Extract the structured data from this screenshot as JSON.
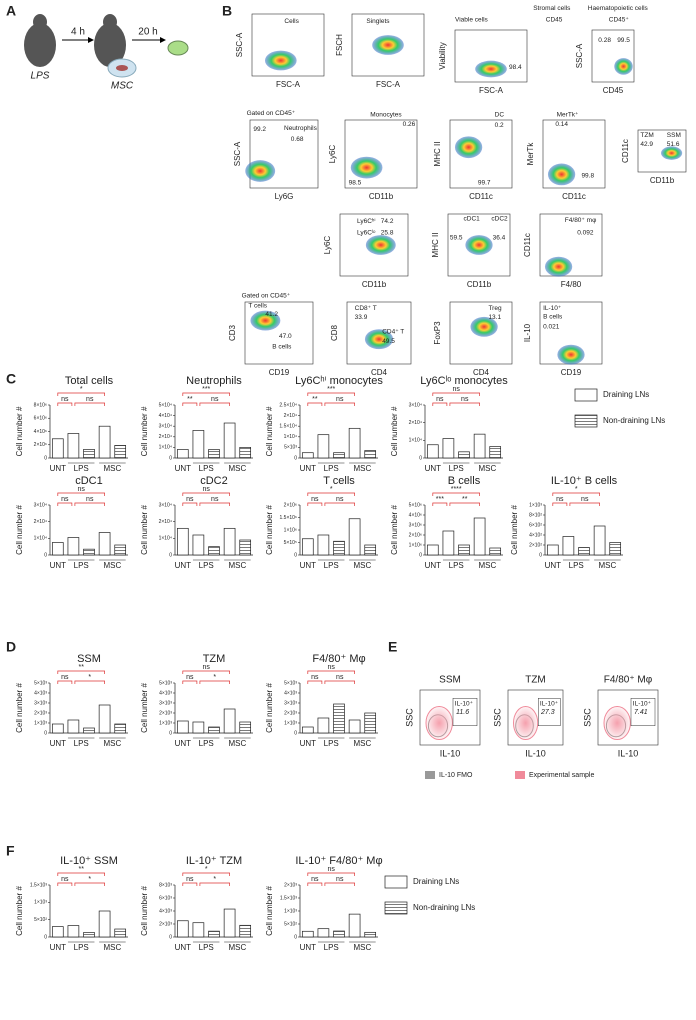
{
  "panel_labels": [
    "A",
    "B",
    "C",
    "D",
    "E",
    "F"
  ],
  "panel_a": {
    "steps": [
      "4 h",
      "20 h"
    ],
    "treatments": [
      "LPS",
      "MSC"
    ]
  },
  "flow": [
    {
      "y": "SSC-A",
      "x": "FSC-A",
      "gates": [
        "Cells"
      ]
    },
    {
      "y": "FSCH",
      "x": "FSC-A",
      "gates": [
        "Singlets"
      ]
    },
    {
      "y": "Viability",
      "x": "FSC-A",
      "gates": [
        "Viable cells",
        "98.4"
      ]
    },
    {
      "y": "SSC-A",
      "x": "CD45",
      "gates": [
        "Stromal cells",
        "Haematopoietic cells",
        "CD45",
        "CD45⁺",
        "0.28",
        "99.5"
      ]
    },
    {
      "y": "SSC-A",
      "x": "Ly6G",
      "gates": [
        "Gated on CD45⁺",
        "99.2",
        "Neutrophils",
        "0.68"
      ]
    },
    {
      "y": "Ly6C",
      "x": "CD11b",
      "gates": [
        "Monocytes",
        "0.26",
        "98.5"
      ]
    },
    {
      "y": "MHC II",
      "x": "CD11c",
      "gates": [
        "DC",
        "0.2",
        "99.7"
      ]
    },
    {
      "y": "MerTk",
      "x": "CD11c",
      "gates": [
        "MerTk⁺",
        "0.14",
        "99.8"
      ]
    },
    {
      "y": "CD11c",
      "x": "CD11b",
      "gates": [
        "TZM",
        "SSM",
        "42.9",
        "51.6"
      ]
    },
    {
      "y": "Ly6C",
      "x": "CD11b",
      "gates": [
        "Ly6Cʰⁱ",
        "74.2",
        "Ly6Cˡᵒ",
        "25.8"
      ]
    },
    {
      "y": "MHC II",
      "x": "CD11b",
      "gates": [
        "cDC1",
        "cDC2",
        "59.5",
        "36.4"
      ]
    },
    {
      "y": "CD11c",
      "x": "F4/80",
      "gates": [
        "F4/80⁺ mφ",
        "0.092"
      ]
    },
    {
      "y": "CD3",
      "x": "CD19",
      "gates": [
        "Gated on CD45⁺",
        "T cells",
        "41.2",
        "47.0",
        "B cells"
      ]
    },
    {
      "y": "CD8",
      "x": "CD4",
      "gates": [
        "CD8⁺ T",
        "33.9",
        "CD4⁺ T",
        "49.5"
      ]
    },
    {
      "y": "FoxP3",
      "x": "CD4",
      "gates": [
        "Treg",
        "13.1"
      ]
    },
    {
      "y": "IL-10",
      "x": "CD19",
      "gates": [
        "IL-10⁺",
        "B cells",
        "0.021"
      ]
    }
  ],
  "panel_e": {
    "plots": [
      {
        "title": "SSM",
        "y": "SSC",
        "x": "IL-10",
        "gates": [
          "IL-10⁺",
          "11.6"
        ]
      },
      {
        "title": "TZM",
        "y": "SSC",
        "x": "IL-10",
        "gates": [
          "IL-10⁺",
          "27.3"
        ]
      },
      {
        "title": "F4/80⁺ Mφ",
        "y": "SSC",
        "x": "IL-10",
        "gates": [
          "IL-10⁺",
          "7.41"
        ]
      }
    ],
    "legend": [
      {
        "name": "IL-10 FMO",
        "color": "#999999"
      },
      {
        "name": "Experimental sample",
        "color": "#f08a9a"
      }
    ]
  },
  "chart_data": [
    {
      "type": "bar",
      "title": "Total cells",
      "ylabel": "Cell number #",
      "categories": [
        "UNT",
        "LPS",
        "MSC"
      ],
      "series": [
        {
          "name": "Draining LNs",
          "color": "#ffffff",
          "hatch": false,
          "values": [
            2900000,
            3700000,
            4800000
          ]
        },
        {
          "name": "Non-draining LNs",
          "color": "#ffffff",
          "hatch": true,
          "values": [
            null,
            1300000,
            1900000
          ]
        }
      ],
      "ylim": [
        0,
        8000000
      ],
      "yticks": [
        0,
        {
          "value": 2000000,
          "label": "2×10⁶"
        },
        {
          "value": 4000000,
          "label": "4×10⁶"
        },
        {
          "value": 6000000,
          "label": "6×10⁶"
        },
        {
          "value": 8000000,
          "label": "8×10⁶"
        }
      ],
      "annotations": [
        "*",
        "ns",
        "ns"
      ]
    },
    {
      "type": "bar",
      "title": "Neutrophils",
      "ylabel": "Cell number #",
      "categories": [
        "UNT",
        "LPS",
        "MSC"
      ],
      "series": [
        {
          "name": "Draining LNs",
          "color": "#ffffff",
          "hatch": false,
          "values": [
            8000,
            26000,
            33000
          ]
        },
        {
          "name": "Non-draining LNs",
          "color": "#ffffff",
          "hatch": true,
          "values": [
            null,
            8000,
            10000
          ]
        }
      ],
      "ylim": [
        0,
        50000
      ],
      "yticks": [
        0,
        {
          "value": 10000,
          "label": "1×10⁴"
        },
        {
          "value": 20000,
          "label": "2×10⁴"
        },
        {
          "value": 30000,
          "label": "3×10⁴"
        },
        {
          "value": 40000,
          "label": "4×10⁴"
        },
        {
          "value": 50000,
          "label": "5×10⁴"
        }
      ],
      "annotations": [
        "***",
        "**",
        "ns"
      ]
    },
    {
      "type": "bar",
      "title": "Ly6Cʰⁱ monocytes",
      "ylabel": "Cell number #",
      "categories": [
        "UNT",
        "LPS",
        "MSC"
      ],
      "series": [
        {
          "name": "Draining LNs",
          "color": "#ffffff",
          "hatch": false,
          "values": [
            2500,
            11000,
            14000
          ]
        },
        {
          "name": "Non-draining LNs",
          "color": "#ffffff",
          "hatch": true,
          "values": [
            null,
            2500,
            3500
          ]
        }
      ],
      "ylim": [
        0,
        25000
      ],
      "yticks": [
        0,
        {
          "value": 5000,
          "label": "5×10³"
        },
        {
          "value": 10000,
          "label": "1×10⁴"
        },
        {
          "value": 15000,
          "label": "1.5×10⁴"
        },
        {
          "value": 20000,
          "label": "2×10⁴"
        },
        {
          "value": 25000,
          "label": "2.5×10⁴"
        }
      ],
      "annotations": [
        "***",
        "**",
        "ns"
      ]
    },
    {
      "type": "bar",
      "title": "Ly6Cˡᵒ monocytes",
      "ylabel": "Cell number #",
      "categories": [
        "UNT",
        "LPS",
        "MSC"
      ],
      "series": [
        {
          "name": "Draining LNs",
          "color": "#ffffff",
          "hatch": false,
          "values": [
            7500,
            11000,
            13500
          ]
        },
        {
          "name": "Non-draining LNs",
          "color": "#ffffff",
          "hatch": true,
          "values": [
            null,
            3500,
            6500
          ]
        }
      ],
      "ylim": [
        0,
        30000
      ],
      "yticks": [
        0,
        {
          "value": 10000,
          "label": "1×10⁴"
        },
        {
          "value": 20000,
          "label": "2×10⁴"
        },
        {
          "value": 30000,
          "label": "3×10⁴"
        }
      ],
      "annotations": [
        "ns",
        "ns",
        "ns"
      ]
    },
    {
      "type": "bar",
      "title": "cDC1",
      "ylabel": "Cell number #",
      "categories": [
        "UNT",
        "LPS",
        "MSC"
      ],
      "series": [
        {
          "name": "Draining LNs",
          "color": "#ffffff",
          "hatch": false,
          "values": [
            7500,
            10500,
            13500
          ]
        },
        {
          "name": "Non-draining LNs",
          "color": "#ffffff",
          "hatch": true,
          "values": [
            null,
            3500,
            6000
          ]
        }
      ],
      "ylim": [
        0,
        30000
      ],
      "yticks": [
        0,
        {
          "value": 10000,
          "label": "1×10⁴"
        },
        {
          "value": 20000,
          "label": "2×10⁴"
        },
        {
          "value": 30000,
          "label": "3×10⁴"
        }
      ],
      "annotations": [
        "ns",
        "ns",
        "ns"
      ]
    },
    {
      "type": "bar",
      "title": "cDC2",
      "ylabel": "Cell number #",
      "categories": [
        "UNT",
        "LPS",
        "MSC"
      ],
      "series": [
        {
          "name": "Draining LNs",
          "color": "#ffffff",
          "hatch": false,
          "values": [
            16000,
            12000,
            16000
          ]
        },
        {
          "name": "Non-draining LNs",
          "color": "#ffffff",
          "hatch": true,
          "values": [
            null,
            5000,
            9000
          ]
        }
      ],
      "ylim": [
        0,
        30000
      ],
      "yticks": [
        0,
        {
          "value": 10000,
          "label": "1×10⁴"
        },
        {
          "value": 20000,
          "label": "2×10⁴"
        },
        {
          "value": 30000,
          "label": "3×10⁴"
        }
      ],
      "annotations": [
        "ns",
        "ns",
        "ns"
      ]
    },
    {
      "type": "bar",
      "title": "T cells",
      "ylabel": "Cell number #",
      "categories": [
        "UNT",
        "LPS",
        "MSC"
      ],
      "series": [
        {
          "name": "Draining LNs",
          "color": "#ffffff",
          "hatch": false,
          "values": [
            650000,
            800000,
            1450000
          ]
        },
        {
          "name": "Non-draining LNs",
          "color": "#ffffff",
          "hatch": true,
          "values": [
            null,
            550000,
            400000
          ]
        }
      ],
      "ylim": [
        0,
        2000000
      ],
      "yticks": [
        0,
        {
          "value": 500000,
          "label": "5×10⁵"
        },
        {
          "value": 1000000,
          "label": "1×10⁶"
        },
        {
          "value": 1500000,
          "label": "1.5×10⁶"
        },
        {
          "value": 2000000,
          "label": "2×10⁶"
        }
      ],
      "annotations": [
        "*",
        "ns",
        "ns"
      ]
    },
    {
      "type": "bar",
      "title": "B cells",
      "ylabel": "Cell number #",
      "categories": [
        "UNT",
        "LPS",
        "MSC"
      ],
      "series": [
        {
          "name": "Draining LNs",
          "color": "#ffffff",
          "hatch": false,
          "values": [
            1000000,
            2400000,
            3700000
          ]
        },
        {
          "name": "Non-draining LNs",
          "color": "#ffffff",
          "hatch": true,
          "values": [
            null,
            1000000,
            700000
          ]
        }
      ],
      "ylim": [
        0,
        5000000
      ],
      "yticks": [
        0,
        {
          "value": 1000000,
          "label": "1×10⁶"
        },
        {
          "value": 2000000,
          "label": "2×10⁶"
        },
        {
          "value": 3000000,
          "label": "3×10⁶"
        },
        {
          "value": 4000000,
          "label": "4×10⁶"
        },
        {
          "value": 5000000,
          "label": "5×10⁶"
        }
      ],
      "annotations": [
        "****",
        "***",
        "**"
      ]
    },
    {
      "type": "bar",
      "title": "IL-10⁺ B cells",
      "ylabel": "Cell number #",
      "categories": [
        "UNT",
        "LPS",
        "MSC"
      ],
      "series": [
        {
          "name": "Draining LNs",
          "color": "#ffffff",
          "hatch": false,
          "values": [
            200,
            370,
            580
          ]
        },
        {
          "name": "Non-draining LNs",
          "color": "#ffffff",
          "hatch": true,
          "values": [
            null,
            150,
            250
          ]
        }
      ],
      "ylim": [
        0,
        1000
      ],
      "yticks": [
        0,
        {
          "value": 200,
          "label": "2×10²"
        },
        {
          "value": 400,
          "label": "4×10²"
        },
        {
          "value": 600,
          "label": "6×10²"
        },
        {
          "value": 800,
          "label": "8×10²"
        },
        {
          "value": 1000,
          "label": "1×10³"
        }
      ],
      "annotations": [
        "*",
        "ns",
        "ns"
      ]
    },
    {
      "type": "bar",
      "title": "SSM",
      "ylabel": "Cell number #",
      "categories": [
        "UNT",
        "LPS",
        "MSC"
      ],
      "series": [
        {
          "name": "Draining LNs",
          "color": "#ffffff",
          "hatch": false,
          "values": [
            900,
            1300,
            2800
          ]
        },
        {
          "name": "Non-draining LNs",
          "color": "#ffffff",
          "hatch": true,
          "values": [
            null,
            500,
            900
          ]
        }
      ],
      "ylim": [
        0,
        5000
      ],
      "yticks": [
        0,
        {
          "value": 1000,
          "label": "1×10³"
        },
        {
          "value": 2000,
          "label": "2×10³"
        },
        {
          "value": 3000,
          "label": "3×10³"
        },
        {
          "value": 4000,
          "label": "4×10³"
        },
        {
          "value": 5000,
          "label": "5×10³"
        }
      ],
      "annotations": [
        "**",
        "ns",
        "*"
      ]
    },
    {
      "type": "bar",
      "title": "TZM",
      "ylabel": "Cell number #",
      "categories": [
        "UNT",
        "LPS",
        "MSC"
      ],
      "series": [
        {
          "name": "Draining LNs",
          "color": "#ffffff",
          "hatch": false,
          "values": [
            1200,
            1100,
            2400
          ]
        },
        {
          "name": "Non-draining LNs",
          "color": "#ffffff",
          "hatch": true,
          "values": [
            null,
            600,
            1100
          ]
        }
      ],
      "ylim": [
        0,
        5000
      ],
      "yticks": [
        0,
        {
          "value": 1000,
          "label": "1×10³"
        },
        {
          "value": 2000,
          "label": "2×10³"
        },
        {
          "value": 3000,
          "label": "3×10³"
        },
        {
          "value": 4000,
          "label": "4×10³"
        },
        {
          "value": 5000,
          "label": "5×10³"
        }
      ],
      "annotations": [
        "ns",
        "ns",
        "*"
      ]
    },
    {
      "type": "bar",
      "title": "F4/80⁺ Mφ",
      "ylabel": "Cell number #",
      "categories": [
        "UNT",
        "LPS",
        "MSC"
      ],
      "series": [
        {
          "name": "Draining LNs",
          "color": "#ffffff",
          "hatch": false,
          "values": [
            600,
            1500,
            1300
          ]
        },
        {
          "name": "Non-draining LNs",
          "color": "#ffffff",
          "hatch": true,
          "values": [
            null,
            2900,
            2000
          ]
        }
      ],
      "ylim": [
        0,
        5000
      ],
      "yticks": [
        0,
        {
          "value": 1000,
          "label": "1×10³"
        },
        {
          "value": 2000,
          "label": "2×10³"
        },
        {
          "value": 3000,
          "label": "3×10³"
        },
        {
          "value": 4000,
          "label": "4×10³"
        },
        {
          "value": 5000,
          "label": "5×10³"
        }
      ],
      "annotations": [
        "ns",
        "ns",
        "ns"
      ]
    },
    {
      "type": "bar",
      "title": "IL-10⁺ SSM",
      "ylabel": "Cell number #",
      "categories": [
        "UNT",
        "LPS",
        "MSC"
      ],
      "series": [
        {
          "name": "Draining LNs",
          "color": "#ffffff",
          "hatch": false,
          "values": [
            300,
            330,
            750
          ]
        },
        {
          "name": "Non-draining LNs",
          "color": "#ffffff",
          "hatch": true,
          "values": [
            null,
            130,
            230
          ]
        }
      ],
      "ylim": [
        0,
        1500
      ],
      "yticks": [
        0,
        {
          "value": 500,
          "label": "5×10²"
        },
        {
          "value": 1000,
          "label": "1×10³"
        },
        {
          "value": 1500,
          "label": "1.5×10³"
        }
      ],
      "annotations": [
        "**",
        "ns",
        "*"
      ]
    },
    {
      "type": "bar",
      "title": "IL-10⁺ TZM",
      "ylabel": "Cell number #",
      "categories": [
        "UNT",
        "LPS",
        "MSC"
      ],
      "series": [
        {
          "name": "Draining LNs",
          "color": "#ffffff",
          "hatch": false,
          "values": [
            2500,
            2200,
            4300
          ]
        },
        {
          "name": "Non-draining LNs",
          "color": "#ffffff",
          "hatch": true,
          "values": [
            null,
            900,
            1800
          ]
        }
      ],
      "ylim": [
        0,
        8000
      ],
      "yticks": [
        0,
        {
          "value": 2000,
          "label": "2×10³"
        },
        {
          "value": 4000,
          "label": "4×10³"
        },
        {
          "value": 6000,
          "label": "6×10³"
        },
        {
          "value": 8000,
          "label": "8×10³"
        }
      ],
      "annotations": [
        "*",
        "ns",
        "*"
      ]
    },
    {
      "type": "bar",
      "title": "IL-10⁺ F4/80⁺ Mφ",
      "ylabel": "Cell number #",
      "categories": [
        "UNT",
        "LPS",
        "MSC"
      ],
      "series": [
        {
          "name": "Draining LNs",
          "color": "#ffffff",
          "hatch": false,
          "values": [
            220,
            320,
            880
          ]
        },
        {
          "name": "Non-draining LNs",
          "color": "#ffffff",
          "hatch": true,
          "values": [
            null,
            230,
            180
          ]
        }
      ],
      "ylim": [
        0,
        2000
      ],
      "yticks": [
        0,
        {
          "value": 500,
          "label": "5×10²"
        },
        {
          "value": 1000,
          "label": "1×10³"
        },
        {
          "value": 1500,
          "label": "1.5×10³"
        },
        {
          "value": 2000,
          "label": "2×10³"
        }
      ],
      "annotations": [
        "ns",
        "ns",
        "ns"
      ]
    }
  ]
}
